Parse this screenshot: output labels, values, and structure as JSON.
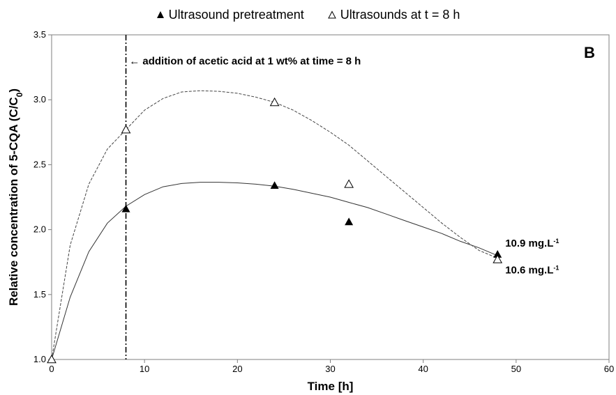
{
  "chart_data": {
    "type": "scatter",
    "panel_label": "B",
    "xlabel": "Time [h]",
    "ylabel": "Relative concentration of 5-CQA (C/C",
    "ylabel_sub": "0",
    "ylabel_end": ")",
    "xlim": [
      0,
      60
    ],
    "ylim": [
      1.0,
      3.5
    ],
    "x_ticks": [
      0,
      10,
      20,
      30,
      40,
      50,
      60
    ],
    "y_ticks": [
      "1.0",
      "1.5",
      "2.0",
      "2.5",
      "3.0",
      "3.5"
    ],
    "grid": false,
    "legend_position": "top-center",
    "series": [
      {
        "name": "Ultrasound pretreatment",
        "marker": "filled-triangle",
        "line_style": "solid",
        "x": [
          0,
          8,
          24,
          32,
          48
        ],
        "y": [
          1.0,
          2.16,
          2.34,
          2.06,
          1.81
        ],
        "fit_x": [
          0,
          2,
          4,
          6,
          8,
          10,
          12,
          14,
          16,
          18,
          20,
          22,
          24,
          26,
          28,
          30,
          32,
          34,
          36,
          38,
          40,
          42,
          44,
          46,
          48
        ],
        "fit_y": [
          1.0,
          1.48,
          1.83,
          2.05,
          2.18,
          2.27,
          2.33,
          2.355,
          2.365,
          2.365,
          2.36,
          2.35,
          2.335,
          2.31,
          2.28,
          2.25,
          2.21,
          2.17,
          2.12,
          2.07,
          2.02,
          1.97,
          1.91,
          1.86,
          1.8
        ]
      },
      {
        "name": "Ultrasounds at t = 8 h",
        "marker": "open-triangle",
        "line_style": "dashed",
        "x": [
          0,
          8,
          24,
          32,
          48
        ],
        "y": [
          1.0,
          2.77,
          2.98,
          2.35,
          1.77
        ],
        "fit_x": [
          0,
          2,
          4,
          6,
          8,
          10,
          12,
          14,
          16,
          18,
          20,
          22,
          24,
          26,
          28,
          30,
          32,
          34,
          36,
          38,
          40,
          42,
          44,
          46,
          48
        ],
        "fit_y": [
          1.0,
          1.88,
          2.35,
          2.62,
          2.77,
          2.92,
          3.01,
          3.06,
          3.07,
          3.065,
          3.05,
          3.02,
          2.98,
          2.92,
          2.84,
          2.75,
          2.65,
          2.53,
          2.41,
          2.29,
          2.17,
          2.05,
          1.94,
          1.84,
          1.78
        ]
      }
    ],
    "vertical_line": {
      "x": 8,
      "style": "dash-dot"
    },
    "annotations": [
      {
        "text": "← addition of acetic acid at 1 wt% at time = 8 h",
        "x": 8.5,
        "y": 3.3
      }
    ],
    "point_labels": [
      {
        "value": "10.9 mg.L",
        "sup": "-1",
        "x": 48,
        "y": 1.81,
        "position": "right-above"
      },
      {
        "value": "10.6 mg.L",
        "sup": "-1",
        "x": 48,
        "y": 1.77,
        "position": "right-below"
      }
    ]
  }
}
